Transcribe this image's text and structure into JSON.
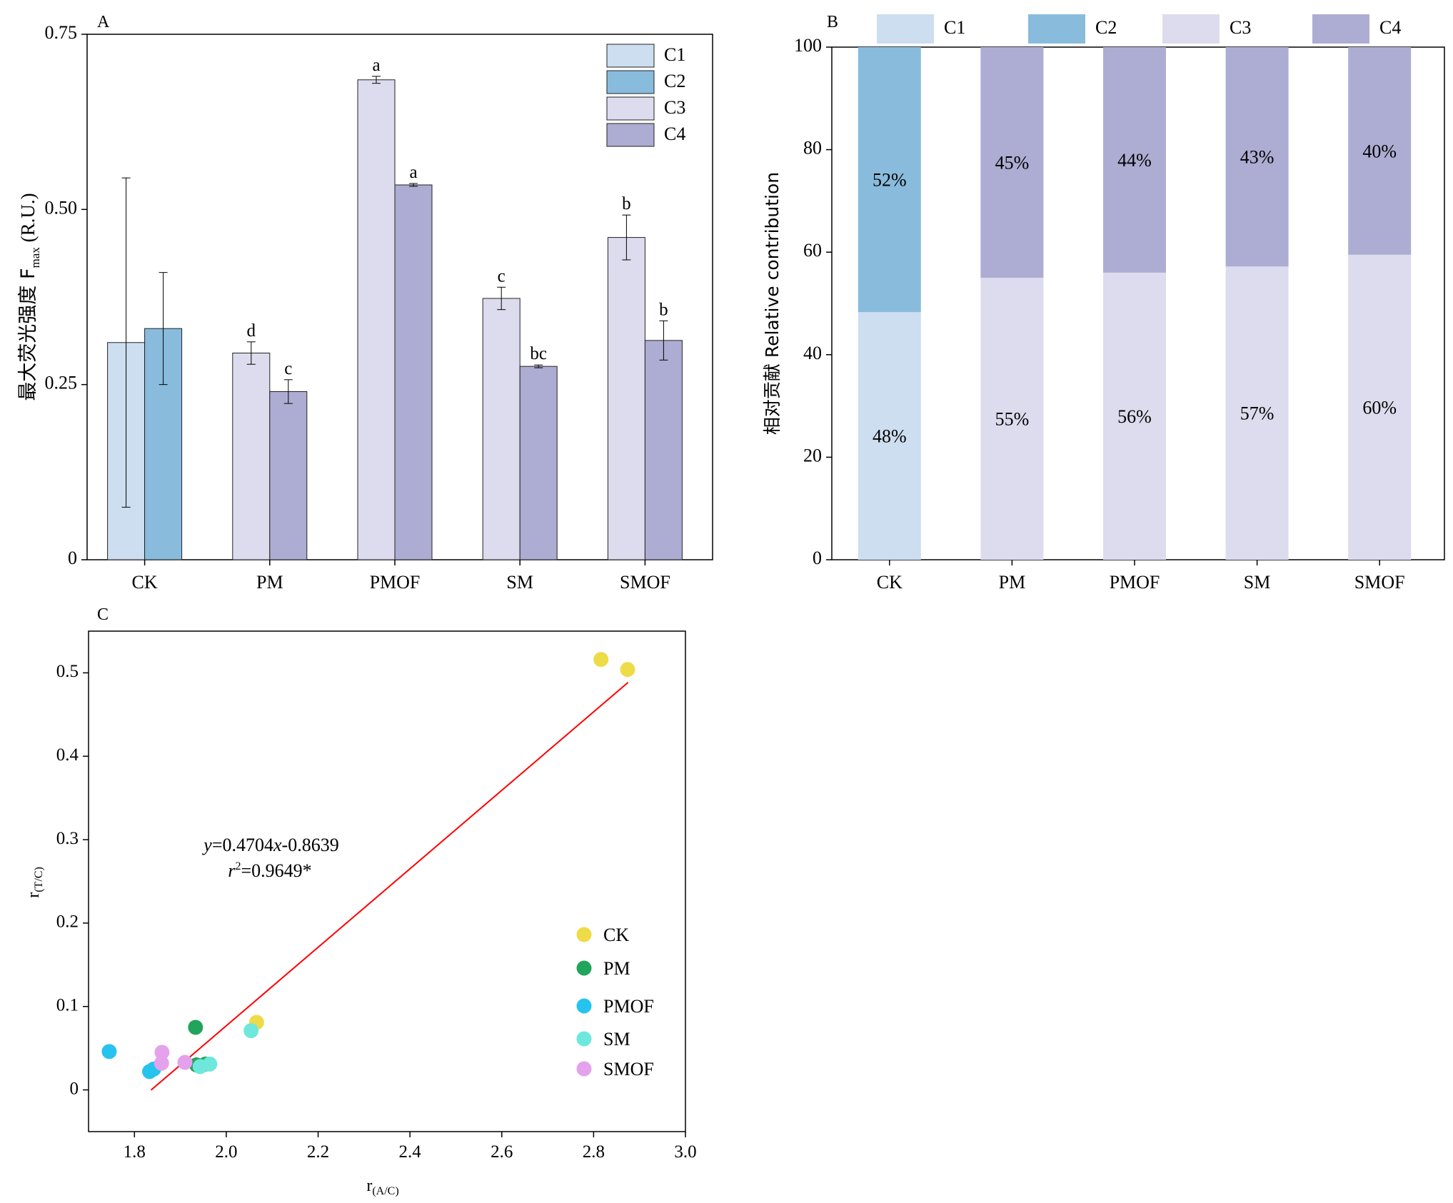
{
  "chart_data": [
    {
      "panel": "A",
      "type": "bar",
      "ylabel_prefix": "最大荧光强度 F",
      "ylabel_sub": "max",
      "ylabel_suffix": " (R.U.)",
      "ylim": [
        0,
        0.75
      ],
      "yticks": [
        {
          "value": 0,
          "label": "0"
        },
        {
          "value": 0.25,
          "label": "0.25"
        },
        {
          "value": 0.5,
          "label": "0.50"
        },
        {
          "value": 0.75,
          "label": "0.75"
        }
      ],
      "categories": [
        "CK",
        "PM",
        "PMOF",
        "SM",
        "SMOF"
      ],
      "legend": [
        "C1",
        "C2",
        "C3",
        "C4"
      ],
      "legend_position": "top-right",
      "groups": [
        {
          "category": "CK",
          "bars": [
            {
              "component": "C1",
              "value": 0.31,
              "err": 0.235,
              "letter": ""
            },
            {
              "component": "C2",
              "value": 0.33,
              "err": 0.08,
              "letter": ""
            }
          ]
        },
        {
          "category": "PM",
          "bars": [
            {
              "component": "C3",
              "value": 0.295,
              "err": 0.016,
              "letter": "d"
            },
            {
              "component": "C4",
              "value": 0.24,
              "err": 0.017,
              "letter": "c"
            }
          ]
        },
        {
          "category": "PMOF",
          "bars": [
            {
              "component": "C3",
              "value": 0.685,
              "err": 0.005,
              "letter": "a"
            },
            {
              "component": "C4",
              "value": 0.535,
              "err": 0.002,
              "letter": "a"
            }
          ]
        },
        {
          "category": "SM",
          "bars": [
            {
              "component": "C3",
              "value": 0.373,
              "err": 0.016,
              "letter": "c"
            },
            {
              "component": "C4",
              "value": 0.276,
              "err": 0.002,
              "letter": "bc"
            }
          ]
        },
        {
          "category": "SMOF",
          "bars": [
            {
              "component": "C3",
              "value": 0.46,
              "err": 0.032,
              "letter": "b"
            },
            {
              "component": "C4",
              "value": 0.313,
              "err": 0.028,
              "letter": "b"
            }
          ]
        }
      ]
    },
    {
      "panel": "B",
      "type": "bar",
      "stacked": true,
      "ylabel": "相对贡献 Relative contribution",
      "ylim": [
        0,
        100
      ],
      "yticks": [
        0,
        20,
        40,
        60,
        80,
        100
      ],
      "categories": [
        "CK",
        "PM",
        "PMOF",
        "SM",
        "SMOF"
      ],
      "legend": [
        "C1",
        "C2",
        "C3",
        "C4"
      ],
      "legend_position": "top",
      "stacks": [
        {
          "category": "CK",
          "segments": [
            {
              "component": "C1",
              "value": 48.3,
              "label": "48%"
            },
            {
              "component": "C2",
              "value": 51.7,
              "label": "52%"
            }
          ]
        },
        {
          "category": "PM",
          "segments": [
            {
              "component": "C3",
              "value": 55,
              "label": "55%"
            },
            {
              "component": "C4",
              "value": 45,
              "label": "45%"
            }
          ]
        },
        {
          "category": "PMOF",
          "segments": [
            {
              "component": "C3",
              "value": 56,
              "label": "56%"
            },
            {
              "component": "C4",
              "value": 44,
              "label": "44%"
            }
          ]
        },
        {
          "category": "SM",
          "segments": [
            {
              "component": "C3",
              "value": 57.2,
              "label": "57%"
            },
            {
              "component": "C4",
              "value": 42.8,
              "label": "43%"
            }
          ]
        },
        {
          "category": "SMOF",
          "segments": [
            {
              "component": "C3",
              "value": 59.5,
              "label": "60%"
            },
            {
              "component": "C4",
              "value": 40.5,
              "label": "40%"
            }
          ]
        }
      ]
    },
    {
      "panel": "C",
      "type": "scatter",
      "xlabel_main": "r",
      "xlabel_sub": "(A/C)",
      "ylabel_main": "r",
      "ylabel_sub": "(T/C)",
      "xlim": [
        1.7,
        3.0
      ],
      "ylim": [
        -0.05,
        0.55
      ],
      "xticks": [
        {
          "value": 1.8,
          "label": "1.8"
        },
        {
          "value": 2.0,
          "label": "2.0"
        },
        {
          "value": 2.2,
          "label": "2.2"
        },
        {
          "value": 2.4,
          "label": "2.4"
        },
        {
          "value": 2.6,
          "label": "2.6"
        },
        {
          "value": 2.8,
          "label": "2.8"
        },
        {
          "value": 3.0,
          "label": "3.0"
        }
      ],
      "yticks": [
        {
          "value": 0,
          "label": "0"
        },
        {
          "value": 0.1,
          "label": "0.1"
        },
        {
          "value": 0.2,
          "label": "0.2"
        },
        {
          "value": 0.3,
          "label": "0.3"
        },
        {
          "value": 0.4,
          "label": "0.4"
        },
        {
          "value": 0.5,
          "label": "0.5"
        }
      ],
      "legend_position": "right",
      "series": [
        {
          "name": "CK",
          "points": [
            [
              2.816,
              0.516
            ],
            [
              2.874,
              0.504
            ],
            [
              2.066,
              0.081
            ]
          ]
        },
        {
          "name": "PM",
          "points": [
            [
              1.933,
              0.075
            ],
            [
              1.935,
              0.03
            ],
            [
              1.955,
              0.031
            ]
          ]
        },
        {
          "name": "PMOF",
          "points": [
            [
              1.745,
              0.046
            ],
            [
              1.833,
              0.022
            ],
            [
              1.842,
              0.025
            ]
          ]
        },
        {
          "name": "SM",
          "points": [
            [
              2.054,
              0.071
            ],
            [
              1.943,
              0.028
            ],
            [
              1.964,
              0.031
            ]
          ]
        },
        {
          "name": "SMOF",
          "points": [
            [
              1.86,
              0.045
            ],
            [
              1.859,
              0.032
            ],
            [
              1.91,
              0.033
            ]
          ]
        }
      ],
      "fit": {
        "slope": 0.4704,
        "intercept": -0.8639,
        "x_range": [
          1.836,
          2.875
        ],
        "equation_parts": [
          "y",
          "=0.4704",
          "x",
          "-0.8639"
        ],
        "r2_parts": [
          "r",
          "2",
          "=0.9649*"
        ]
      }
    }
  ],
  "panel_labels": {
    "a": "A",
    "b": "B",
    "c": "C"
  },
  "colors": {
    "C1": "#ccdeef",
    "C2": "#89bcdc",
    "C3": "#dddcee",
    "C4": "#adacd2",
    "CK": "#eedb48",
    "PM": "#23a45c",
    "PMOF": "#27c3ef",
    "SM": "#6ee8dc",
    "SMOF": "#e4a2ec",
    "fit_line": "#ff0000"
  }
}
